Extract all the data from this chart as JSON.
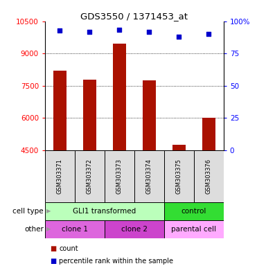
{
  "title": "GDS3550 / 1371453_at",
  "samples": [
    "GSM303371",
    "GSM303372",
    "GSM303373",
    "GSM303374",
    "GSM303375",
    "GSM303376"
  ],
  "counts": [
    8200,
    7800,
    9450,
    7750,
    4750,
    6000
  ],
  "percentile_ranks": [
    93,
    92,
    93.5,
    92,
    88,
    90
  ],
  "ylim_left": [
    4500,
    10500
  ],
  "ylim_right": [
    0,
    100
  ],
  "yticks_left": [
    4500,
    6000,
    7500,
    9000,
    10500
  ],
  "yticks_right": [
    0,
    25,
    50,
    75,
    100
  ],
  "ytick_labels_right": [
    "0",
    "25",
    "50",
    "75",
    "100%"
  ],
  "bar_color": "#aa1100",
  "dot_color": "#0000cc",
  "cell_type_groups": [
    {
      "label": "GLI1 transformed",
      "span": [
        0,
        4
      ],
      "color": "#bbffbb"
    },
    {
      "label": "control",
      "span": [
        4,
        6
      ],
      "color": "#33dd33"
    }
  ],
  "other_groups": [
    {
      "label": "clone 1",
      "span": [
        0,
        2
      ],
      "color": "#dd66dd"
    },
    {
      "label": "clone 2",
      "span": [
        2,
        4
      ],
      "color": "#cc44cc"
    },
    {
      "label": "parental cell",
      "span": [
        4,
        6
      ],
      "color": "#ffaaff"
    }
  ],
  "bg_color": "#dddddd",
  "chart_bg": "#ffffff"
}
